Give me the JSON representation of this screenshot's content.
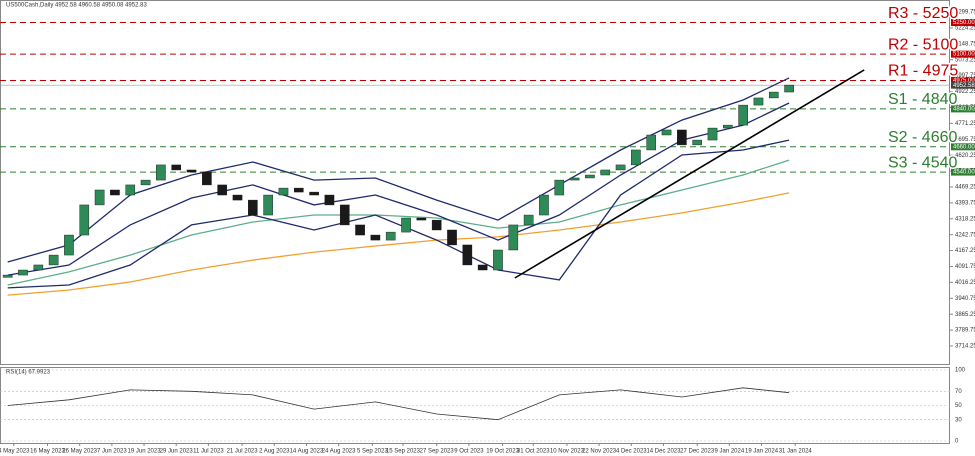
{
  "chart_data": {
    "type": "candlestick",
    "title": "US500Cash,Daily  4952.58 4960.58 4950.08 4952.83",
    "xlim": [
      -0.5,
      61.5
    ],
    "ylim": [
      3624,
      5357
    ],
    "yticks": [
      5299.75,
      5224.25,
      5148.75,
      5073.25,
      4997.75,
      4922.25,
      4846.75,
      4771.25,
      4695.75,
      4620.25,
      4544.75,
      4469.25,
      4393.75,
      4318.25,
      4242.75,
      4167.25,
      4091.75,
      4016.25,
      3940.75,
      3865.25,
      3789.75,
      3714.25
    ],
    "xticks": [
      {
        "value": 0.4,
        "label": "4 May 2023"
      },
      {
        "value": 2.6,
        "label": "16 May 2023"
      },
      {
        "value": 4.7,
        "label": "26 May 2023"
      },
      {
        "value": 6.8,
        "label": "7 Jun 2023"
      },
      {
        "value": 8.9,
        "label": "19 Jun 2023"
      },
      {
        "value": 11.0,
        "label": "29 Jun 2023"
      },
      {
        "value": 13.1,
        "label": "11 Jul 2023"
      },
      {
        "value": 15.3,
        "label": "21 Jul 2023"
      },
      {
        "value": 17.4,
        "label": "2 Aug 2023"
      },
      {
        "value": 19.5,
        "label": "14 Aug 2023"
      },
      {
        "value": 21.6,
        "label": "24 Aug 2023"
      },
      {
        "value": 23.8,
        "label": "5 Sep 2023"
      },
      {
        "value": 25.8,
        "label": "15 Sep 2023"
      },
      {
        "value": 28.0,
        "label": "27 Sep 2023"
      },
      {
        "value": 30.1,
        "label": "9 Oct 2023"
      },
      {
        "value": 32.3,
        "label": "19 Oct 2023"
      },
      {
        "value": 34.3,
        "label": "31 Oct 2023"
      },
      {
        "value": 36.5,
        "label": "10 Nov 2023"
      },
      {
        "value": 38.6,
        "label": "22 Nov 2023"
      },
      {
        "value": 40.7,
        "label": "4 Dec 2023"
      },
      {
        "value": 42.8,
        "label": "14 Dec 2023"
      },
      {
        "value": 45.0,
        "label": "27 Dec 2023"
      },
      {
        "value": 47.1,
        "label": "9 Jan 2024"
      },
      {
        "value": 49.2,
        "label": "19 Jan 2024"
      },
      {
        "value": 51.4,
        "label": "31 Jan 2024"
      }
    ],
    "up_color": "#2e8b57",
    "down_color": "#1a1a1a",
    "x": [
      0,
      1,
      2,
      3,
      4,
      5,
      6,
      7,
      8,
      9,
      10,
      11,
      12,
      13,
      14,
      15,
      16,
      17,
      18,
      19,
      20,
      21,
      22,
      23,
      24,
      25,
      26,
      27,
      28,
      29,
      30,
      31,
      32,
      33,
      34,
      35,
      36,
      37,
      38,
      39,
      40,
      41,
      42,
      43,
      44,
      45,
      46,
      47,
      48,
      49,
      50,
      51
    ],
    "open": [
      4040,
      4051,
      4075,
      4099,
      4146,
      4241,
      4384,
      4455,
      4431,
      4479,
      4502,
      4574,
      4550,
      4540,
      4479,
      4431,
      4407,
      4336,
      4431,
      4464,
      4445,
      4431,
      4384,
      4289,
      4241,
      4217,
      4255,
      4322,
      4312,
      4265,
      4194,
      4099,
      4075,
      4170,
      4289,
      4336,
      4431,
      4502,
      4512,
      4526,
      4550,
      4574,
      4645,
      4716,
      4740,
      4669,
      4692,
      4749,
      4763,
      4858,
      4892,
      4920
    ],
    "close": [
      4051,
      4075,
      4099,
      4146,
      4241,
      4384,
      4455,
      4431,
      4479,
      4502,
      4574,
      4550,
      4540,
      4479,
      4431,
      4407,
      4336,
      4431,
      4464,
      4445,
      4431,
      4384,
      4289,
      4241,
      4217,
      4255,
      4322,
      4312,
      4265,
      4194,
      4099,
      4075,
      4170,
      4289,
      4336,
      4431,
      4502,
      4512,
      4526,
      4550,
      4574,
      4645,
      4716,
      4740,
      4669,
      4692,
      4749,
      4763,
      4858,
      4892,
      4920,
      4953
    ],
    "overlays": [
      {
        "color": "#f0a030",
        "x": [
          0,
          4,
          8,
          12,
          16,
          20,
          24,
          28,
          32,
          36,
          40,
          44,
          48,
          51
        ],
        "values": [
          3956,
          3980,
          4018,
          4075,
          4122,
          4160,
          4189,
          4217,
          4232,
          4265,
          4303,
          4346,
          4398,
          4441
        ]
      },
      {
        "color": "#5cae8a",
        "x": [
          0,
          4,
          8,
          12,
          16,
          20,
          24,
          28,
          32,
          36,
          40,
          44,
          48,
          51
        ],
        "values": [
          4004,
          4066,
          4146,
          4241,
          4303,
          4336,
          4336,
          4322,
          4274,
          4303,
          4384,
          4455,
          4526,
          4597
        ]
      },
      {
        "color": "#1f2a6b",
        "x": [
          0,
          4,
          8,
          12,
          16,
          20,
          24,
          28,
          32,
          36,
          40,
          44,
          48,
          51
        ],
        "values": [
          4113,
          4194,
          4431,
          4526,
          4588,
          4502,
          4512,
          4407,
          4312,
          4479,
          4645,
          4787,
          4882,
          4987
        ]
      },
      {
        "color": "#1f2a6b",
        "x": [
          0,
          4,
          8,
          12,
          16,
          20,
          24,
          28,
          32,
          36,
          40,
          44,
          48,
          51
        ],
        "values": [
          4051,
          4099,
          4289,
          4417,
          4479,
          4384,
          4431,
          4336,
          4217,
          4336,
          4526,
          4692,
          4763,
          4868
        ]
      },
      {
        "color": "#1f2a6b",
        "x": [
          0,
          4,
          8,
          12,
          16,
          20,
          24,
          28,
          32,
          36,
          40,
          44,
          48,
          51
        ],
        "values": [
          3990,
          4004,
          4099,
          4289,
          4336,
          4265,
          4336,
          4217,
          4075,
          4028,
          4431,
          4621,
          4645,
          4692
        ]
      }
    ],
    "trendline": {
      "color": "#000000",
      "x": [
        33.1,
        55.9
      ],
      "values": [
        4037,
        5025
      ]
    },
    "last_price": 4952.58,
    "levels": [
      {
        "name": "R3 - 5250",
        "value": 5250,
        "label": "5250.00",
        "color": "#c00000"
      },
      {
        "name": "R2 - 5100",
        "value": 5100,
        "label": "5100.00",
        "color": "#c00000"
      },
      {
        "name": "R1 - 4975",
        "value": 4975,
        "label": "4975.00",
        "color": "#c00000"
      },
      {
        "name": "S1 - 4840",
        "value": 4840,
        "label": "4840.00",
        "color": "#2e7d32"
      },
      {
        "name": "S2 - 4660",
        "value": 4660,
        "label": "4660.00",
        "color": "#2e7d32"
      },
      {
        "name": "S3 - 4540",
        "value": 4540,
        "label": "4540.00",
        "color": "#2e7d32"
      }
    ],
    "rsi": {
      "title": "RSI(14) 67.9923",
      "ylim": [
        0,
        100
      ],
      "yticks": [
        0,
        30,
        50,
        70,
        100
      ],
      "color": "#333333",
      "x": [
        0,
        4,
        8,
        12,
        16,
        20,
        24,
        28,
        32,
        36,
        40,
        44,
        48,
        51
      ],
      "values": [
        50,
        58,
        72,
        70,
        65,
        45,
        55,
        38,
        30,
        65,
        72,
        62,
        75,
        68
      ]
    }
  }
}
